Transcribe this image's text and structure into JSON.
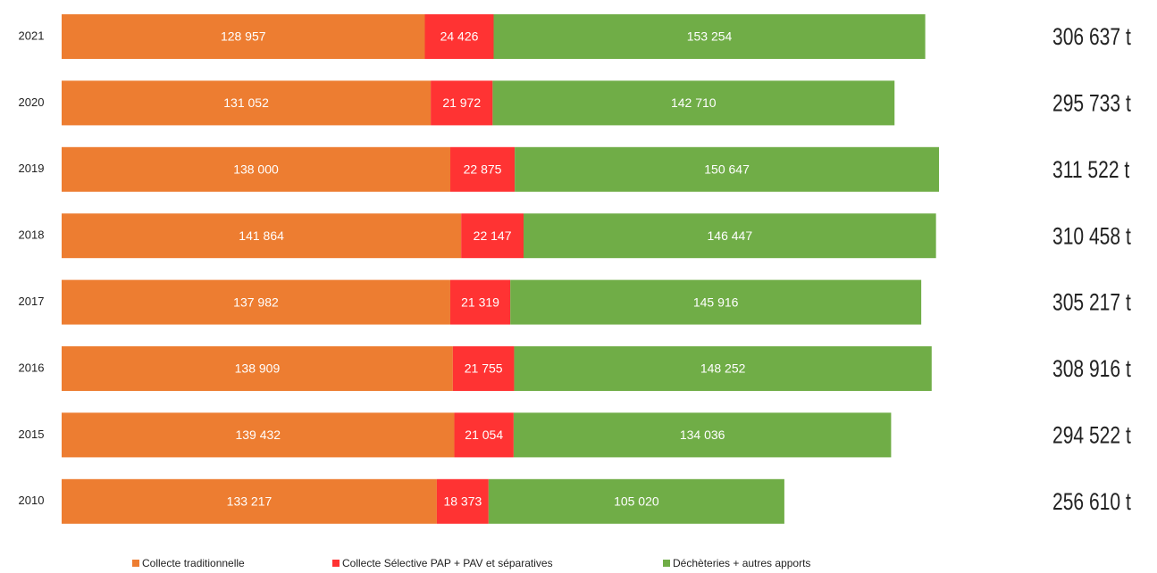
{
  "chart_data": {
    "type": "stacked-barh",
    "categories": [
      "2021",
      "2020",
      "2019",
      "2018",
      "2017",
      "2016",
      "2015",
      "2010"
    ],
    "series": [
      {
        "name": "Collecte traditionnelle",
        "color": "#ed7d31",
        "values": [
          128957,
          131052,
          138000,
          141864,
          137982,
          138909,
          139432,
          133217
        ],
        "value_labels": [
          "128 957",
          "131 052",
          "138 000",
          "141 864",
          "137 982",
          "138 909",
          "139 432",
          "133 217"
        ]
      },
      {
        "name": "Collecte Sélective PAP + PAV et séparatives",
        "color": "#ff3333",
        "values": [
          24426,
          21972,
          22875,
          22147,
          21319,
          21755,
          21054,
          18373
        ],
        "value_labels": [
          "24 426",
          "21 972",
          "22 875",
          "22 147",
          "21 319",
          "21 755",
          "21 054",
          "18 373"
        ]
      },
      {
        "name": "Déchèteries + autres apports",
        "color": "#70ad47",
        "values": [
          153254,
          142710,
          150647,
          146447,
          145916,
          148252,
          134036,
          105020
        ],
        "value_labels": [
          "153 254",
          "142 710",
          "150 647",
          "146 447",
          "145 916",
          "148 252",
          "134 036",
          "105 020"
        ]
      }
    ],
    "totals": [
      "306 637 t",
      "295 733 t",
      "311 522 t",
      "310 458 t",
      "305 217 t",
      "308 916 t",
      "294 522 t",
      "256 610 t"
    ]
  }
}
